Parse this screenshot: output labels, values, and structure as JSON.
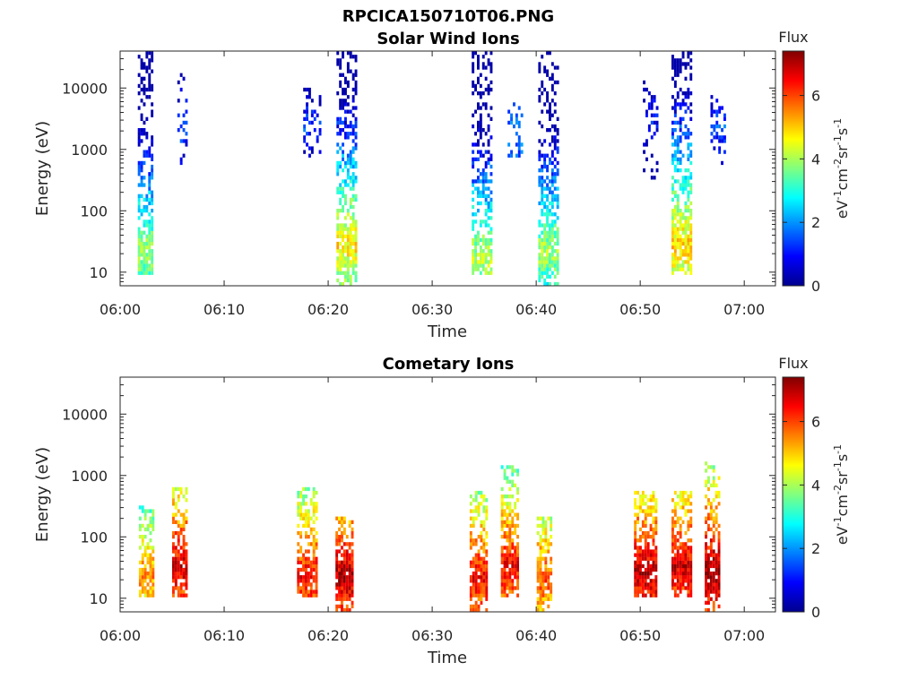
{
  "figure": {
    "title": "RPCICA150710T06.PNG"
  },
  "colorbar": {
    "label": "Flux",
    "unit_base": "eV",
    "unit_cm": "cm",
    "unit_sr": "sr",
    "unit_s": "s",
    "unit_exp_minus1": "-1",
    "unit_exp_minus2": "-2",
    "range": [
      0,
      7.4
    ],
    "ticks": [
      "0",
      "2",
      "4",
      "6"
    ],
    "colormap": "jet"
  },
  "chart_data": [
    {
      "type": "heatmap",
      "title": "Solar Wind Ions",
      "xlabel": "Time",
      "ylabel": "Energy (eV)",
      "x_ticks": [
        "06:00",
        "06:10",
        "06:20",
        "06:30",
        "06:40",
        "06:50",
        "07:00"
      ],
      "x_range_minutes": [
        0,
        63
      ],
      "y_scale": "log",
      "y_ticks": [
        "10",
        "100",
        "1000",
        "10000"
      ],
      "y_range": [
        6,
        40000
      ],
      "bursts": [
        {
          "t": 2.5,
          "w": 1.6,
          "e_low": 8,
          "e_high": 35000,
          "peak": 4.0,
          "peak_e": 20,
          "density": 0.55
        },
        {
          "t": 6.0,
          "w": 1.0,
          "e_low": 500,
          "e_high": 25000,
          "peak": 1.5,
          "peak_e": 2000,
          "density": 0.2
        },
        {
          "t": 18.5,
          "w": 1.8,
          "e_low": 600,
          "e_high": 10000,
          "peak": 1.5,
          "peak_e": 2000,
          "density": 0.18
        },
        {
          "t": 21.8,
          "w": 2.0,
          "e_low": 6,
          "e_high": 40000,
          "peak": 4.8,
          "peak_e": 25,
          "density": 0.55
        },
        {
          "t": 34.8,
          "w": 2.0,
          "e_low": 8,
          "e_high": 35000,
          "peak": 4.2,
          "peak_e": 15,
          "density": 0.5
        },
        {
          "t": 38.0,
          "w": 1.5,
          "e_low": 500,
          "e_high": 8000,
          "peak": 2.0,
          "peak_e": 1500,
          "density": 0.2
        },
        {
          "t": 41.2,
          "w": 2.0,
          "e_low": 6,
          "e_high": 35000,
          "peak": 4.0,
          "peak_e": 20,
          "density": 0.55
        },
        {
          "t": 51.0,
          "w": 1.5,
          "e_low": 300,
          "e_high": 15000,
          "peak": 1.2,
          "peak_e": 3000,
          "density": 0.18
        },
        {
          "t": 54.0,
          "w": 2.0,
          "e_low": 8,
          "e_high": 35000,
          "peak": 5.0,
          "peak_e": 25,
          "density": 0.55
        },
        {
          "t": 57.5,
          "w": 1.5,
          "e_low": 500,
          "e_high": 8000,
          "peak": 1.5,
          "peak_e": 2000,
          "density": 0.2
        }
      ]
    },
    {
      "type": "heatmap",
      "title": "Cometary Ions",
      "xlabel": "Time",
      "ylabel": "Energy (eV)",
      "x_ticks": [
        "06:00",
        "06:10",
        "06:20",
        "06:30",
        "06:40",
        "06:50",
        "07:00"
      ],
      "x_range_minutes": [
        0,
        63
      ],
      "y_scale": "log",
      "y_ticks": [
        "10",
        "100",
        "1000",
        "10000"
      ],
      "y_range": [
        6,
        40000
      ],
      "bursts": [
        {
          "t": 2.5,
          "w": 1.4,
          "e_low": 10,
          "e_high": 300,
          "peak": 5.5,
          "peak_e": 22,
          "density": 0.5
        },
        {
          "t": 5.8,
          "w": 1.6,
          "e_low": 10,
          "e_high": 600,
          "peak": 6.8,
          "peak_e": 30,
          "density": 0.55
        },
        {
          "t": 18.0,
          "w": 2.0,
          "e_low": 10,
          "e_high": 600,
          "peak": 6.5,
          "peak_e": 20,
          "density": 0.55
        },
        {
          "t": 21.6,
          "w": 1.8,
          "e_low": 6,
          "e_high": 200,
          "peak": 7.0,
          "peak_e": 22,
          "density": 0.55
        },
        {
          "t": 34.5,
          "w": 1.8,
          "e_low": 6,
          "e_high": 500,
          "peak": 6.5,
          "peak_e": 20,
          "density": 0.55
        },
        {
          "t": 37.5,
          "w": 1.8,
          "e_low": 10,
          "e_high": 1300,
          "peak": 6.5,
          "peak_e": 30,
          "density": 0.55
        },
        {
          "t": 40.8,
          "w": 1.5,
          "e_low": 6,
          "e_high": 200,
          "peak": 6.0,
          "peak_e": 20,
          "density": 0.5
        },
        {
          "t": 50.5,
          "w": 2.2,
          "e_low": 10,
          "e_high": 500,
          "peak": 7.0,
          "peak_e": 25,
          "density": 0.55
        },
        {
          "t": 54.0,
          "w": 2.0,
          "e_low": 10,
          "e_high": 500,
          "peak": 6.8,
          "peak_e": 30,
          "density": 0.55
        },
        {
          "t": 57.0,
          "w": 1.6,
          "e_low": 6,
          "e_high": 1600,
          "peak": 7.2,
          "peak_e": 25,
          "density": 0.55
        }
      ]
    }
  ]
}
